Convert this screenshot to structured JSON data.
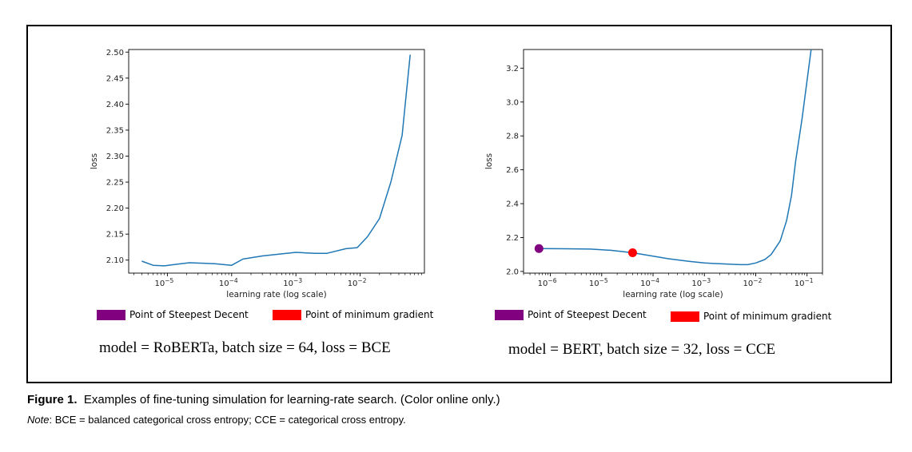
{
  "chart_data": [
    {
      "type": "line",
      "xlabel": "learning rate (log scale)",
      "ylabel": "loss",
      "xscale": "log",
      "xlim": [
        2.5e-06,
        0.1
      ],
      "ylim": [
        2.075,
        2.505
      ],
      "yticks": [
        "2.10",
        "2.15",
        "2.20",
        "2.25",
        "2.30",
        "2.35",
        "2.40",
        "2.45",
        "2.50"
      ],
      "xticks": [
        {
          "base": "10",
          "exp": "−5",
          "value": 1e-05
        },
        {
          "base": "10",
          "exp": "−4",
          "value": 0.0001
        },
        {
          "base": "10",
          "exp": "−3",
          "value": 0.001
        },
        {
          "base": "10",
          "exp": "−2",
          "value": 0.01
        }
      ],
      "series": [
        {
          "x": [
            4e-06,
            6e-06,
            9e-06,
            1.4e-05,
            2.2e-05,
            3.5e-05,
            5.5e-05,
            0.0001,
            0.00015,
            0.0003,
            0.0006,
            0.001,
            0.002,
            0.003,
            0.006,
            0.009,
            0.013,
            0.02,
            0.03,
            0.045,
            0.06
          ],
          "y": [
            2.098,
            2.09,
            2.089,
            2.092,
            2.095,
            2.094,
            2.093,
            2.09,
            2.102,
            2.108,
            2.112,
            2.115,
            2.113,
            2.113,
            2.122,
            2.124,
            2.145,
            2.18,
            2.25,
            2.34,
            2.495
          ],
          "color": "#1f77b4"
        }
      ],
      "legend": [
        {
          "label": "Point of Steepest Decent",
          "color": "#800080"
        },
        {
          "label": "Point of minimum gradient",
          "color": "#ff0000"
        }
      ],
      "annotation": "model = RoBERTa,  batch size = 64,  loss = BCE"
    },
    {
      "type": "line",
      "xlabel": "learning rate (log scale)",
      "ylabel": "loss",
      "xscale": "log",
      "xlim": [
        3e-07,
        0.2
      ],
      "ylim": [
        1.99,
        3.31
      ],
      "yticks": [
        "2.0",
        "2.2",
        "2.4",
        "2.6",
        "2.8",
        "3.0",
        "3.2"
      ],
      "xticks": [
        {
          "base": "10",
          "exp": "−6",
          "value": 1e-06
        },
        {
          "base": "10",
          "exp": "−5",
          "value": 1e-05
        },
        {
          "base": "10",
          "exp": "−4",
          "value": 0.0001
        },
        {
          "base": "10",
          "exp": "−3",
          "value": 0.001
        },
        {
          "base": "10",
          "exp": "−2",
          "value": 0.01
        },
        {
          "base": "10",
          "exp": "−1",
          "value": 0.1
        }
      ],
      "series": [
        {
          "x": [
            6e-07,
            2e-06,
            6e-06,
            1.5e-05,
            4e-05,
            0.0001,
            0.0002,
            0.0005,
            0.001,
            0.002,
            0.005,
            0.007,
            0.01,
            0.015,
            0.02,
            0.03,
            0.04,
            0.05,
            0.06,
            0.08,
            0.12
          ],
          "y": [
            2.135,
            2.134,
            2.132,
            2.125,
            2.11,
            2.09,
            2.075,
            2.06,
            2.05,
            2.045,
            2.04,
            2.04,
            2.05,
            2.07,
            2.1,
            2.18,
            2.3,
            2.45,
            2.65,
            2.9,
            3.31
          ],
          "color": "#1f77b4"
        }
      ],
      "points": [
        {
          "label": "Point of Steepest Decent",
          "x": 6e-07,
          "y": 2.135,
          "color": "#800080"
        },
        {
          "label": "Point of minimum gradient",
          "x": 4e-05,
          "y": 2.11,
          "color": "#ff0000"
        }
      ],
      "legend": [
        {
          "label": "Point of Steepest Decent",
          "color": "#800080"
        },
        {
          "label": "Point of minimum gradient",
          "color": "#ff0000"
        }
      ],
      "annotation": "model = BERT,  batch size = 32,  loss = CCE"
    }
  ],
  "caption": {
    "label": "Figure 1.",
    "text": "Examples of fine-tuning simulation for learning-rate search. (Color online only.)"
  },
  "note": {
    "label": "Note",
    "text": ": BCE = balanced categorical cross entropy; CCE = categorical cross entropy."
  }
}
